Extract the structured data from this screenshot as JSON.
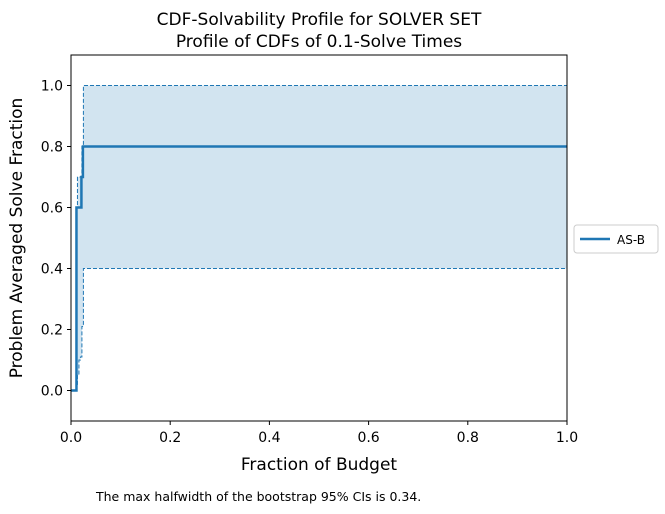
{
  "chart_data": {
    "type": "line",
    "title": "CDF-Solvability Profile for SOLVER SET",
    "subtitle": "Profile of CDFs of 0.1-Solve Times",
    "xlabel": "Fraction of Budget",
    "ylabel": "Problem Averaged Solve Fraction",
    "xlim": [
      0,
      1
    ],
    "ylim": [
      -0.1,
      1.1
    ],
    "x_ticks": [
      "0.0",
      "0.2",
      "0.4",
      "0.6",
      "0.8",
      "1.0"
    ],
    "y_ticks": [
      "0.0",
      "0.2",
      "0.4",
      "0.6",
      "0.8",
      "1.0"
    ],
    "grid": false,
    "legend_position": "right",
    "series": [
      {
        "name": "AS-B",
        "color": "#1f77b4",
        "step_x": [
          0,
          0.011,
          0.013,
          0.021,
          0.024,
          1.0
        ],
        "step_y": [
          0.0,
          0.6,
          0.6,
          0.7,
          0.8,
          0.8
        ],
        "ci_lower": {
          "x": [
            0,
            0.011,
            0.013,
            0.016,
            0.019,
            0.022,
            0.025,
            1.0
          ],
          "y": [
            0.0,
            0.02,
            0.05,
            0.1,
            0.11,
            0.21,
            0.4,
            0.4
          ]
        },
        "ci_upper": {
          "x": [
            0,
            0.008,
            0.011,
            0.013,
            0.019,
            0.022,
            0.025,
            1.0
          ],
          "y": [
            0.0,
            0.0,
            0.6,
            0.7,
            0.7,
            0.8,
            1.0,
            1.0
          ]
        }
      }
    ]
  },
  "footnote": "The max halfwidth of the bootstrap 95% CIs is 0.34."
}
